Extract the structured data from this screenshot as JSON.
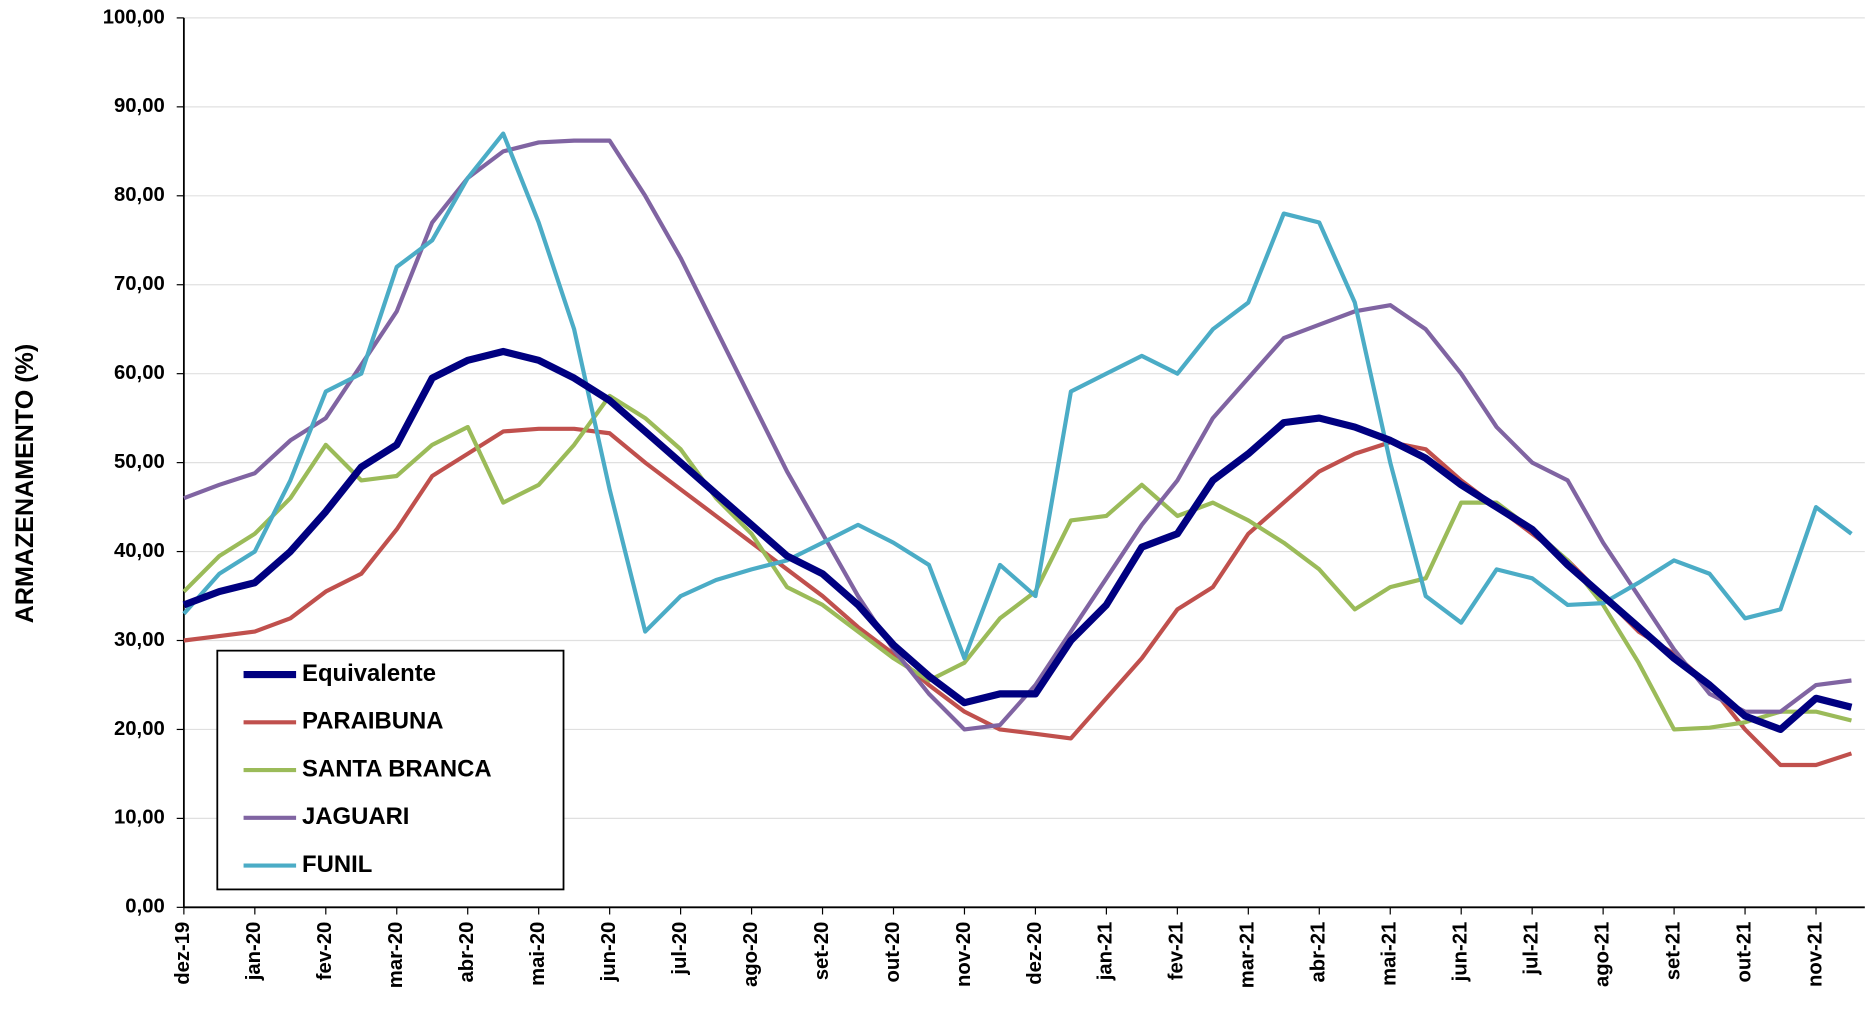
{
  "chart_data": {
    "type": "line",
    "y_label": "ARMAZENAMENTO (%)",
    "categories": [
      "dez-19",
      null,
      "jan-20",
      null,
      "fev-20",
      null,
      "mar-20",
      null,
      "abr-20",
      null,
      "mai-20",
      null,
      "jun-20",
      null,
      "jul-20",
      null,
      "ago-20",
      null,
      "set-20",
      null,
      "out-20",
      null,
      "nov-20",
      null,
      "dez-20",
      null,
      "jan-21",
      null,
      "fev-21",
      null,
      "mar-21",
      null,
      "abr-21",
      null,
      "mai-21",
      null,
      "jun-21",
      null,
      "jul-21",
      null,
      "ago-21",
      null,
      "set-21",
      null,
      "out-21",
      null,
      "nov-21",
      null
    ],
    "ylim": [
      0,
      100
    ],
    "yticks": [
      {
        "value": 0,
        "label": "0,00"
      },
      {
        "value": 10,
        "label": "10,00"
      },
      {
        "value": 20,
        "label": "20,00"
      },
      {
        "value": 30,
        "label": "30,00"
      },
      {
        "value": 40,
        "label": "40,00"
      },
      {
        "value": 50,
        "label": "50,00"
      },
      {
        "value": 60,
        "label": "60,00"
      },
      {
        "value": 70,
        "label": "70,00"
      },
      {
        "value": 80,
        "label": "80,00"
      },
      {
        "value": 90,
        "label": "90,00"
      },
      {
        "value": 100,
        "label": "100,00"
      }
    ],
    "grid": true,
    "legend": "lower left",
    "series": [
      {
        "name": "Equivalente",
        "color": "#000080",
        "values": [
          34,
          35.5,
          36.5,
          40,
          44.5,
          49.5,
          52,
          59.5,
          61.5,
          62.5,
          61.5,
          59.5,
          57,
          53.5,
          50,
          46.5,
          43,
          39.5,
          37.5,
          34,
          29.5,
          26,
          23,
          24,
          24,
          30,
          34,
          40.5,
          42,
          48,
          51,
          54.5,
          55,
          54,
          52.5,
          50.5,
          47.5,
          45,
          42.5,
          38.5,
          35,
          31.5,
          28,
          25,
          21.5,
          20,
          23.5,
          22.5
        ]
      },
      {
        "name": "PARAIBUNA",
        "color": "#c0504d",
        "values": [
          30,
          30.5,
          31,
          32.5,
          35.5,
          37.5,
          42.5,
          48.5,
          51,
          53.5,
          53.8,
          53.8,
          53.3,
          50,
          47,
          44,
          41,
          38,
          35,
          31.5,
          28.5,
          25,
          22,
          20,
          19.5,
          19,
          23.5,
          28,
          33.5,
          36,
          42,
          45.5,
          49,
          51,
          52.3,
          51.5,
          48,
          45,
          42,
          39,
          35,
          31,
          28.5,
          25,
          20,
          16,
          16,
          17.3
        ]
      },
      {
        "name": "SANTA BRANCA",
        "color": "#9bbb59",
        "values": [
          35.5,
          39.5,
          42,
          46,
          52,
          48,
          48.5,
          52,
          54,
          45.5,
          47.5,
          52,
          57.5,
          55,
          51.5,
          46,
          42,
          36,
          34,
          31,
          28,
          25.5,
          27.5,
          32.5,
          35.5,
          43.5,
          44,
          47.5,
          44,
          45.5,
          43.5,
          41,
          38,
          33.5,
          36,
          37,
          45.5,
          45.5,
          42.5,
          39,
          34,
          27.5,
          20,
          20.2,
          20.8,
          22,
          22,
          21
        ]
      },
      {
        "name": "JAGUARI",
        "color": "#8064a2",
        "values": [
          46,
          47.5,
          48.8,
          52.5,
          55,
          61,
          67,
          77,
          82,
          85,
          86,
          86.2,
          86.2,
          80,
          73,
          65,
          57,
          49,
          42,
          35,
          29,
          24,
          20,
          20.5,
          25,
          31,
          37,
          43,
          48,
          55,
          59.5,
          64,
          65.5,
          67,
          67.7,
          65,
          60,
          54,
          50,
          48,
          41,
          35,
          29,
          24,
          22,
          22,
          25,
          25.5
        ]
      },
      {
        "name": "FUNIL",
        "color": "#4bacc6",
        "values": [
          33,
          37.5,
          40,
          48,
          58,
          60,
          72,
          75,
          82,
          87,
          77,
          65,
          47,
          31,
          35,
          36.8,
          38,
          39,
          41,
          43,
          41,
          38.5,
          28,
          38.5,
          35,
          58,
          60,
          62,
          60,
          65,
          68,
          78,
          77,
          68,
          50,
          35,
          32,
          38,
          37,
          34,
          34.2,
          36.5,
          39,
          37.5,
          32.5,
          33.5,
          45,
          42
        ]
      }
    ]
  }
}
